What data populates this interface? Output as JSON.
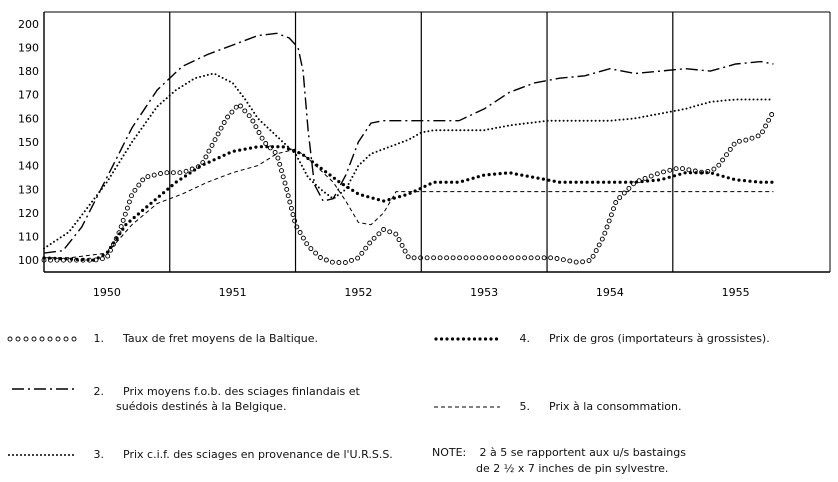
{
  "chart_data": {
    "type": "line",
    "x_tick_labels": [
      "1950",
      "1951",
      "1952",
      "1953",
      "1954",
      "1955"
    ],
    "ylim": [
      95,
      205
    ],
    "y_ticks": [
      100,
      110,
      120,
      130,
      140,
      150,
      160,
      170,
      180,
      190,
      200
    ],
    "xlim": [
      1949.5,
      1955.75
    ],
    "grid": "vertical year lines",
    "series": [
      {
        "key": "s1",
        "style": "circles",
        "x": [
          1949.5,
          1949.9,
          1950.0,
          1950.1,
          1950.2,
          1950.3,
          1950.45,
          1950.6,
          1950.75,
          1950.85,
          1950.95,
          1951.05,
          1951.15,
          1951.25,
          1951.35,
          1951.42,
          1951.5,
          1951.6,
          1951.7,
          1951.8,
          1951.9,
          1952.0,
          1952.1,
          1952.2,
          1952.3,
          1952.4,
          1952.5,
          1952.7,
          1953.0,
          1953.3,
          1953.45,
          1953.55,
          1953.65,
          1953.75,
          1953.85,
          1953.95,
          1954.05,
          1954.2,
          1954.4,
          1954.55,
          1954.65,
          1954.75,
          1954.85,
          1955.0,
          1955.1,
          1955.2,
          1955.3
        ],
        "y": [
          100,
          100,
          101,
          112,
          128,
          135,
          137,
          137,
          140,
          150,
          160,
          166,
          160,
          150,
          145,
          132,
          115,
          106,
          101,
          99,
          99,
          101,
          108,
          113,
          111,
          101,
          101,
          101,
          101,
          101,
          101,
          101,
          100,
          99,
          100,
          110,
          125,
          133,
          137,
          139,
          138,
          137,
          139,
          150,
          151,
          153,
          163
        ]
      },
      {
        "key": "s2",
        "style": "dash-dot",
        "x": [
          1949.5,
          1949.65,
          1949.8,
          1950.0,
          1950.2,
          1950.4,
          1950.6,
          1950.8,
          1951.0,
          1951.2,
          1951.35,
          1951.45,
          1951.52,
          1951.56,
          1951.6,
          1951.65,
          1951.72,
          1951.8,
          1951.9,
          1952.0,
          1952.1,
          1952.2,
          1952.4,
          1952.6,
          1952.8,
          1953.0,
          1953.2,
          1953.4,
          1953.6,
          1953.8,
          1954.0,
          1954.2,
          1954.4,
          1954.6,
          1954.8,
          1955.0,
          1955.2,
          1955.3
        ],
        "y": [
          103,
          104,
          114,
          135,
          156,
          172,
          182,
          187,
          191,
          195,
          196,
          194,
          190,
          180,
          155,
          132,
          125,
          126,
          136,
          150,
          158,
          159,
          159,
          159,
          159,
          164,
          171,
          175,
          177,
          178,
          181,
          179,
          180,
          181,
          180,
          183,
          184,
          183
        ]
      },
      {
        "key": "s3",
        "style": "dots",
        "x": [
          1949.5,
          1949.7,
          1950.0,
          1950.2,
          1950.4,
          1950.55,
          1950.7,
          1950.85,
          1951.0,
          1951.1,
          1951.2,
          1951.3,
          1951.4,
          1951.5,
          1951.6,
          1951.7,
          1951.8,
          1951.9,
          1952.0,
          1952.1,
          1952.25,
          1952.4,
          1952.5,
          1952.6,
          1952.8,
          1953.0,
          1953.2,
          1953.5,
          1953.8,
          1954.0,
          1954.2,
          1954.4,
          1954.6,
          1954.8,
          1955.0,
          1955.2,
          1955.3
        ],
        "y": [
          105,
          112,
          133,
          150,
          165,
          172,
          177,
          179,
          175,
          168,
          160,
          155,
          150,
          145,
          135,
          130,
          126,
          130,
          140,
          145,
          148,
          151,
          154,
          155,
          155,
          155,
          157,
          159,
          159,
          159,
          160,
          162,
          164,
          167,
          168,
          168,
          168
        ]
      },
      {
        "key": "s4",
        "style": "heavy-dots",
        "x": [
          1949.5,
          1949.9,
          1950.0,
          1950.15,
          1950.35,
          1950.55,
          1950.75,
          1951.0,
          1951.2,
          1951.4,
          1951.55,
          1951.7,
          1951.85,
          1952.0,
          1952.2,
          1952.4,
          1952.6,
          1952.8,
          1953.0,
          1953.2,
          1953.4,
          1953.6,
          1953.8,
          1954.0,
          1954.2,
          1954.4,
          1954.6,
          1954.8,
          1955.0,
          1955.2,
          1955.3
        ],
        "y": [
          101,
          100,
          103,
          115,
          124,
          133,
          140,
          146,
          148,
          148,
          145,
          139,
          133,
          128,
          125,
          128,
          133,
          133,
          136,
          137,
          135,
          133,
          133,
          133,
          133,
          134,
          137,
          137,
          134,
          133,
          133
        ]
      },
      {
        "key": "s5",
        "style": "dashed",
        "x": [
          1949.5,
          1949.7,
          1950.0,
          1950.2,
          1950.4,
          1950.6,
          1950.8,
          1951.0,
          1951.2,
          1951.35,
          1951.5,
          1951.6,
          1951.7,
          1951.8,
          1951.9,
          1952.0,
          1952.1,
          1952.2,
          1952.3,
          1952.5,
          1953.0,
          1953.5,
          1954.0,
          1954.5,
          1955.0,
          1955.3
        ],
        "y": [
          101,
          101,
          103,
          115,
          124,
          128,
          133,
          137,
          140,
          145,
          147,
          143,
          138,
          133,
          125,
          116,
          115,
          120,
          129,
          129,
          129,
          129,
          129,
          129,
          129,
          129
        ]
      }
    ],
    "legend": {
      "item1": {
        "num": "1.",
        "text": "Taux de fret moyens de la Baltique."
      },
      "item2a": {
        "num": "2.",
        "text": "Prix moyens f.o.b. des sciages finlandais et"
      },
      "item2b": {
        "text": "suédois destinés à la Belgique."
      },
      "item3": {
        "num": "3.",
        "text": "Prix c.i.f. des sciages en provenance de l'U.R.S.S."
      },
      "item4": {
        "num": "4.",
        "text": "Prix de gros (importateurs à grossistes)."
      },
      "item5": {
        "num": "5.",
        "text": "Prix à la consommation."
      },
      "note_label": "NOTE:",
      "note_line1": "2 à 5 se rapportent aux u/s bastaings",
      "note_line2": "de 2 ½ x 7 inches de pin sylvestre."
    }
  }
}
